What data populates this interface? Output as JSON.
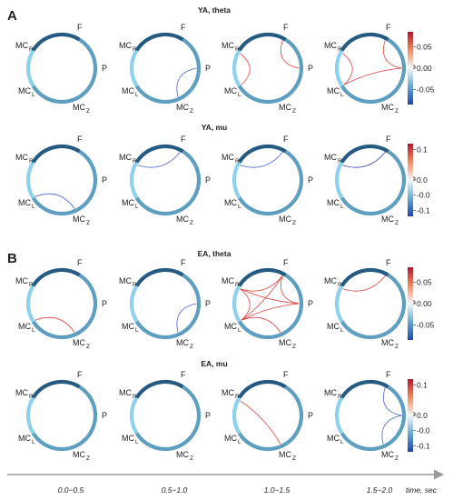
{
  "figure": {
    "colors": {
      "ring_light": "#8fd1ec",
      "ring_mid": "#5e9fc0",
      "ring_dark": "#255a82",
      "positive_edge": "#e0413c",
      "negative_edge": "#4a63cf",
      "time_axis": "#9a9a9a"
    },
    "node_labels": {
      "F": "F",
      "MCR": "MC",
      "P": "P",
      "MCL": "MC",
      "MCZ": "MC",
      "sub_R": "R",
      "sub_L": "L",
      "sub_Z": "Z"
    },
    "sections": [
      {
        "letter": "A",
        "panels": [
          {
            "title": "YA, theta",
            "colorbar_ticks": [
              "0.05",
              "0.00",
              "-0.05"
            ],
            "tick_values": [
              0.05,
              0.0,
              -0.05
            ],
            "range": [
              -0.085,
              0.085
            ],
            "circles": [
              {
                "edges": []
              },
              {
                "edges": [
                  {
                    "from": "P",
                    "to": "MCZ",
                    "sign": "negative"
                  }
                ]
              },
              {
                "edges": [
                  {
                    "from": "MCR",
                    "to": "MCL",
                    "sign": "positive"
                  },
                  {
                    "from": "F",
                    "to": "P",
                    "sign": "positive"
                  }
                ]
              },
              {
                "edges": [
                  {
                    "from": "MCR",
                    "to": "MCL",
                    "sign": "positive"
                  },
                  {
                    "from": "F",
                    "to": "P",
                    "sign": "positive"
                  },
                  {
                    "from": "P",
                    "to": "MCL",
                    "sign": "positive"
                  }
                ]
              }
            ]
          },
          {
            "title": "YA, mu",
            "colorbar_ticks": [
              "0.1",
              "0.0",
              "-0.0",
              "-0.1"
            ],
            "tick_values": [
              0.1,
              0.0,
              -0.05,
              -0.1
            ],
            "range": [
              -0.12,
              0.12
            ],
            "circles": [
              {
                "edges": [
                  {
                    "from": "MCL",
                    "to": "MCZ",
                    "sign": "negative"
                  }
                ]
              },
              {
                "edges": [
                  {
                    "from": "MCR",
                    "to": "F",
                    "sign": "negative"
                  }
                ]
              },
              {
                "edges": [
                  {
                    "from": "MCR",
                    "to": "F",
                    "sign": "negative"
                  }
                ]
              },
              {
                "edges": [
                  {
                    "from": "MCR",
                    "to": "F",
                    "sign": "negative_dark"
                  }
                ]
              }
            ]
          }
        ]
      },
      {
        "letter": "B",
        "panels": [
          {
            "title": "EA, theta",
            "colorbar_ticks": [
              "0.05",
              "0.00",
              "-0.05"
            ],
            "tick_values": [
              0.05,
              0.0,
              -0.05
            ],
            "range": [
              -0.085,
              0.085
            ],
            "circles": [
              {
                "edges": [
                  {
                    "from": "MCL",
                    "to": "MCZ",
                    "sign": "positive"
                  }
                ]
              },
              {
                "edges": [
                  {
                    "from": "P",
                    "to": "MCZ",
                    "sign": "negative"
                  }
                ]
              },
              {
                "edges": [
                  {
                    "from": "MCR",
                    "to": "F",
                    "sign": "positive"
                  },
                  {
                    "from": "MCR",
                    "to": "P",
                    "sign": "positive"
                  },
                  {
                    "from": "MCR",
                    "to": "MCL",
                    "sign": "positive"
                  },
                  {
                    "from": "F",
                    "to": "MCL",
                    "sign": "positive"
                  },
                  {
                    "from": "F",
                    "to": "P",
                    "sign": "positive"
                  },
                  {
                    "from": "P",
                    "to": "MCL",
                    "sign": "positive"
                  },
                  {
                    "from": "MCL",
                    "to": "MCZ",
                    "sign": "positive"
                  }
                ]
              },
              {
                "edges": [
                  {
                    "from": "MCR",
                    "to": "F",
                    "sign": "positive"
                  }
                ]
              }
            ]
          },
          {
            "title": "EA, mu",
            "colorbar_ticks": [
              "0.1",
              "0.0",
              "-0.0",
              "-0.1"
            ],
            "tick_values": [
              0.1,
              0.0,
              -0.05,
              -0.1
            ],
            "range": [
              -0.12,
              0.12
            ],
            "circles": [
              {
                "edges": []
              },
              {
                "edges": []
              },
              {
                "edges": [
                  {
                    "from": "MCR",
                    "to": "MCZ",
                    "sign": "positive"
                  }
                ]
              },
              {
                "edges": [
                  {
                    "from": "F",
                    "to": "P",
                    "sign": "negative"
                  },
                  {
                    "from": "P",
                    "to": "MCZ",
                    "sign": "negative"
                  }
                ]
              }
            ]
          }
        ]
      }
    ],
    "time_axis": {
      "ticks": [
        "0.0−0.5",
        "0.5−1.0",
        "1.0−1.5",
        "1.5−2.0"
      ],
      "label": "time, sec"
    }
  }
}
